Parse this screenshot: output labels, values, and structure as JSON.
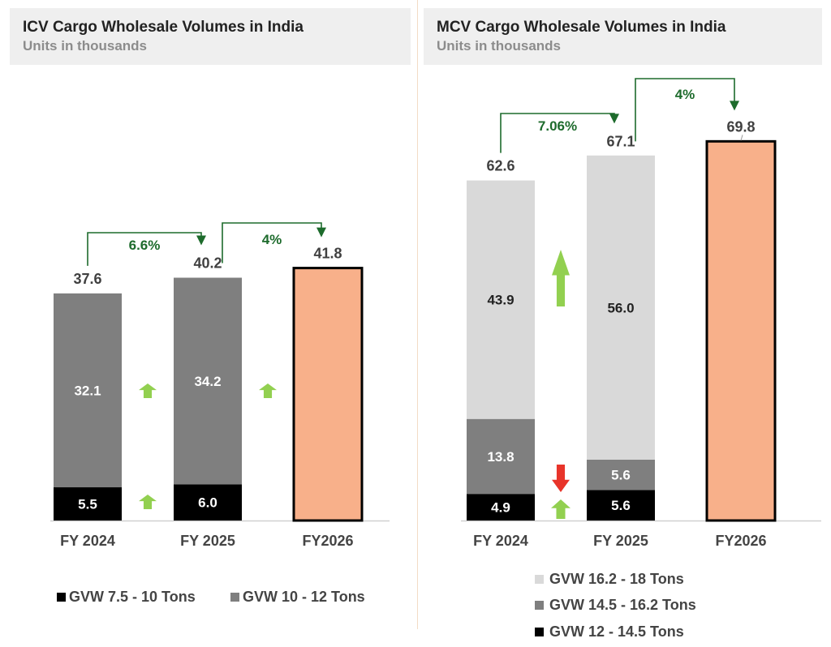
{
  "chart_data": [
    {
      "type": "bar",
      "stacked": true,
      "title": "ICV Cargo Wholesale Volumes in India",
      "subtitle": "Units in thousands",
      "categories": [
        "FY 2024",
        "FY 2025",
        "FY2026"
      ],
      "series": [
        {
          "name": "GVW 7.5 - 10 Tons",
          "values": [
            5.5,
            6.0,
            null
          ],
          "value_labels": [
            "5.5",
            "6.0",
            null
          ],
          "color": "#000000"
        },
        {
          "name": "GVW 10 - 12 Tons",
          "values": [
            32.1,
            34.2,
            null
          ],
          "value_labels": [
            "32.1",
            "34.2",
            null
          ],
          "color": "#7f7f7f"
        },
        {
          "name": "Total forecast",
          "values": [
            null,
            null,
            41.8
          ],
          "color": "#f8b08a",
          "show_in_legend": false
        }
      ],
      "totals": [
        37.6,
        40.2,
        41.8
      ],
      "total_labels": [
        "37.6",
        "40.2",
        "41.8"
      ],
      "growth": [
        {
          "from": 0,
          "to": 1,
          "label": "6.6%"
        },
        {
          "from": 1,
          "to": 2,
          "label": "4%"
        }
      ],
      "change_arrows": [
        {
          "between": [
            0,
            1
          ],
          "series": 0,
          "direction": "up",
          "color": "#92d050"
        },
        {
          "between": [
            0,
            1
          ],
          "series": 1,
          "direction": "up",
          "color": "#92d050"
        },
        {
          "between": [
            1,
            2
          ],
          "series": 1,
          "direction": "up",
          "color": "#92d050"
        }
      ],
      "legend": "bottom",
      "ylim": [
        0,
        43
      ]
    },
    {
      "type": "bar",
      "stacked": true,
      "title": "MCV Cargo Wholesale Volumes in India",
      "subtitle": "Units in thousands",
      "categories": [
        "FY 2024",
        "FY 2025",
        "FY2026"
      ],
      "series": [
        {
          "name": "GVW 12 - 14.5 Tons",
          "values": [
            4.9,
            5.6,
            null
          ],
          "value_labels": [
            "4.9",
            "5.6",
            null
          ],
          "color": "#000000"
        },
        {
          "name": "GVW 14.5 - 16.2 Tons",
          "values": [
            13.8,
            5.6,
            null
          ],
          "value_labels": [
            "13.8",
            "5.6",
            null
          ],
          "color": "#7f7f7f"
        },
        {
          "name": "GVW 16.2 - 18 Tons",
          "values": [
            43.9,
            56.0,
            null
          ],
          "value_labels": [
            "43.9",
            "56.0",
            null
          ],
          "color": "#d9d9d9"
        },
        {
          "name": "Total forecast",
          "values": [
            null,
            null,
            69.8
          ],
          "color": "#f8b08a",
          "show_in_legend": false
        }
      ],
      "totals": [
        62.6,
        67.1,
        69.8
      ],
      "total_labels": [
        "62.6",
        "67.1",
        "69.8"
      ],
      "growth": [
        {
          "from": 0,
          "to": 1,
          "label": "7.06%"
        },
        {
          "from": 1,
          "to": 2,
          "label": "4%"
        }
      ],
      "change_arrows": [
        {
          "between": [
            0,
            1
          ],
          "series": 0,
          "direction": "up",
          "color": "#92d050"
        },
        {
          "between": [
            0,
            1
          ],
          "series": 1,
          "direction": "down",
          "color": "#e8342a"
        },
        {
          "between": [
            0,
            1
          ],
          "series": 2,
          "direction": "up",
          "color": "#92d050",
          "large": true
        }
      ],
      "legend": "bottom",
      "legend_order": [
        2,
        1,
        0
      ],
      "ylim": [
        0,
        72
      ]
    }
  ]
}
